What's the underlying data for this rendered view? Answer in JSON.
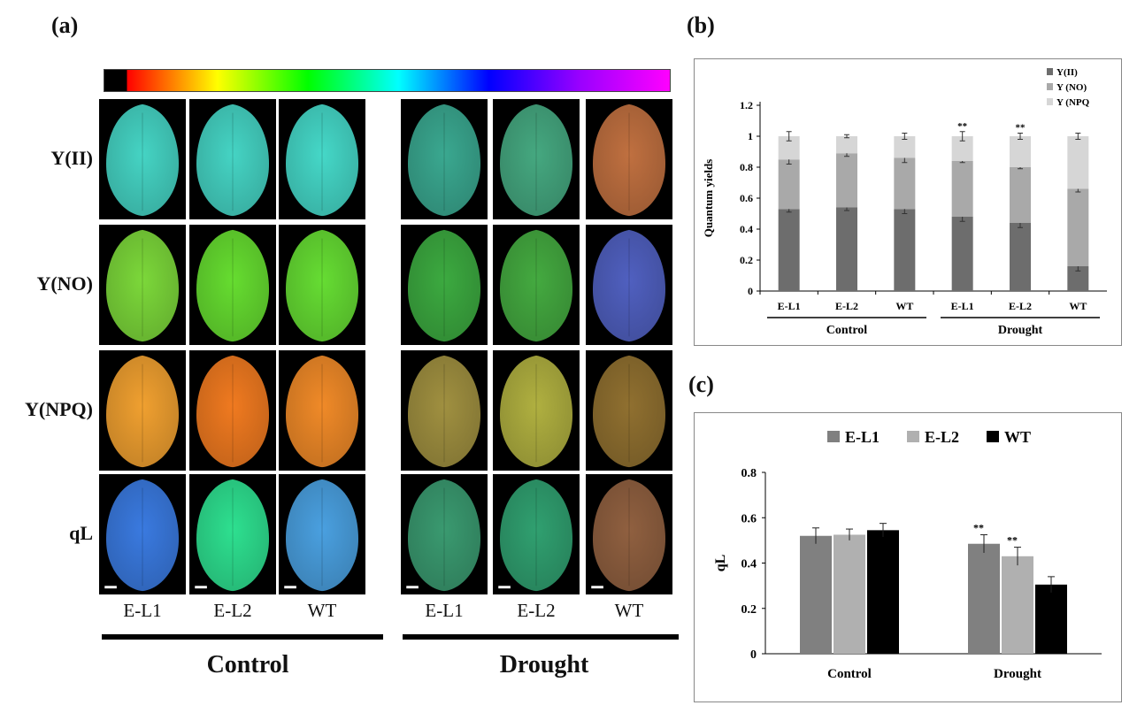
{
  "panels": {
    "a": "(a)",
    "b": "(b)",
    "c": "(c)"
  },
  "panel_a": {
    "row_labels": [
      "Y(II)",
      "Y(NO)",
      "Y(NPQ)",
      "qL"
    ],
    "col_labels": [
      "E-L1",
      "E-L2",
      "WT",
      "E-L1",
      "E-L2",
      "WT"
    ],
    "groups": [
      "Control",
      "Drought"
    ],
    "colorbar": [
      "#000000",
      "#ff0000",
      "#ffff00",
      "#00ff00",
      "#00ffff",
      "#0000ff",
      "#9900ff",
      "#ff00ff"
    ],
    "leaf_colors": [
      [
        "#45d4c4",
        "#45d4c4",
        "#45d8c8",
        "#3aa890",
        "#45a880",
        "#c07040"
      ],
      [
        "#7cd83a",
        "#66dd30",
        "#66dd33",
        "#3caa40",
        "#44aa40",
        "#5060c0"
      ],
      [
        "#f0a030",
        "#f07a20",
        "#f08a28",
        "#a09040",
        "#b0b040",
        "#907030"
      ],
      [
        "#3a7ae0",
        "#2ee090",
        "#4aa0e0",
        "#3a9a70",
        "#30a070",
        "#906040"
      ]
    ]
  },
  "chart_data": [
    {
      "type": "bar",
      "stacked": true,
      "categories": [
        "E-L1",
        "E-L2",
        "WT",
        "E-L1",
        "E-L2",
        "WT"
      ],
      "groups": [
        "Control",
        "Drought"
      ],
      "series": [
        {
          "name": "Y(II)",
          "color": "#6d6d6d",
          "values": [
            0.53,
            0.54,
            0.53,
            0.48,
            0.44,
            0.16
          ],
          "errors": [
            0.02,
            0.02,
            0.03,
            0.03,
            0.03,
            0.03
          ],
          "marks": [
            "",
            "",
            "",
            "**",
            "**",
            ""
          ]
        },
        {
          "name": "Y (NO)",
          "color": "#a9a9a9",
          "values": [
            0.32,
            0.35,
            0.33,
            0.36,
            0.36,
            0.5
          ],
          "errors": [
            0.03,
            0.02,
            0.03,
            0.01,
            0.01,
            0.02
          ],
          "marks": [
            "",
            "",
            "",
            "**",
            "**",
            ""
          ]
        },
        {
          "name": "Y (NPQ",
          "color": "#d6d6d6",
          "values": [
            0.15,
            0.11,
            0.14,
            0.16,
            0.2,
            0.34
          ],
          "errors": [
            0.03,
            0.01,
            0.02,
            0.03,
            0.02,
            0.02
          ],
          "marks": [
            "",
            "",
            "",
            "**",
            "**",
            ""
          ]
        }
      ],
      "title": "",
      "xlabel": "",
      "ylabel": "Quantum yields",
      "ylim": [
        0,
        1.2
      ],
      "yticks": [
        "0",
        "0.2",
        "0.4",
        "0.6",
        "0.8",
        "1",
        "1.2"
      ],
      "legend": "top-right"
    },
    {
      "type": "bar",
      "categories": [
        "Control",
        "Drought"
      ],
      "series": [
        {
          "name": "E-L1",
          "color": "#808080",
          "values": [
            0.52,
            0.485
          ],
          "errors": [
            0.035,
            0.04
          ],
          "marks": [
            "",
            "**"
          ]
        },
        {
          "name": "E-L2",
          "color": "#b0b0b0",
          "values": [
            0.525,
            0.43
          ],
          "errors": [
            0.025,
            0.04
          ],
          "marks": [
            "",
            "**"
          ]
        },
        {
          "name": "WT",
          "color": "#000000",
          "values": [
            0.545,
            0.305
          ],
          "errors": [
            0.03,
            0.035
          ],
          "marks": [
            "",
            ""
          ]
        }
      ],
      "title": "",
      "xlabel": "",
      "ylabel": "qL",
      "ylim": [
        0,
        0.8
      ],
      "yticks": [
        "0",
        "0.2",
        "0.4",
        "0.6",
        "0.8"
      ],
      "legend": "top"
    }
  ]
}
